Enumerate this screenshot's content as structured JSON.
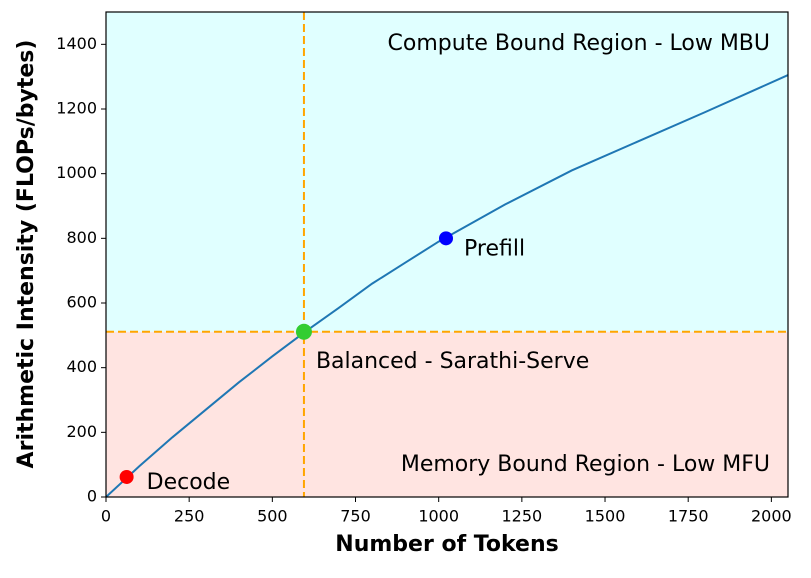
{
  "chart_data": {
    "type": "line",
    "xlabel": "Number of Tokens",
    "ylabel": "Arithmetic Intensity (FLOPs/bytes)",
    "x": [
      0,
      100,
      200,
      300,
      400,
      500,
      600,
      700,
      800,
      900,
      1000,
      1200,
      1400,
      1600,
      1800,
      2050
    ],
    "values": [
      0,
      95,
      185,
      270,
      355,
      435,
      512,
      585,
      660,
      725,
      790,
      905,
      1010,
      1100,
      1190,
      1305
    ],
    "color": "#1f77b4",
    "xlim": [
      0,
      2050
    ],
    "ylim": [
      0,
      1500
    ],
    "xticks": [
      0,
      250,
      500,
      750,
      1000,
      1250,
      1500,
      1750,
      2000
    ],
    "yticks": [
      0,
      200,
      400,
      600,
      800,
      1000,
      1200,
      1400
    ],
    "vline": 595,
    "hline": 511,
    "threshold_color": "#ffa500",
    "regions": [
      {
        "label": "Compute Bound Region - Low MBU",
        "color": "#e0ffff"
      },
      {
        "label": "Memory Bound Region - Low MFU",
        "color": "#ffe4e1"
      }
    ],
    "points": [
      {
        "label": "Decode",
        "x": 62,
        "y": 62,
        "color": "#ff0000"
      },
      {
        "label": "Balanced - Sarathi-Serve",
        "x": 595,
        "y": 511,
        "color": "#32cd32"
      },
      {
        "label": "Prefill",
        "x": 1022,
        "y": 800,
        "color": "#0000ff"
      }
    ]
  }
}
